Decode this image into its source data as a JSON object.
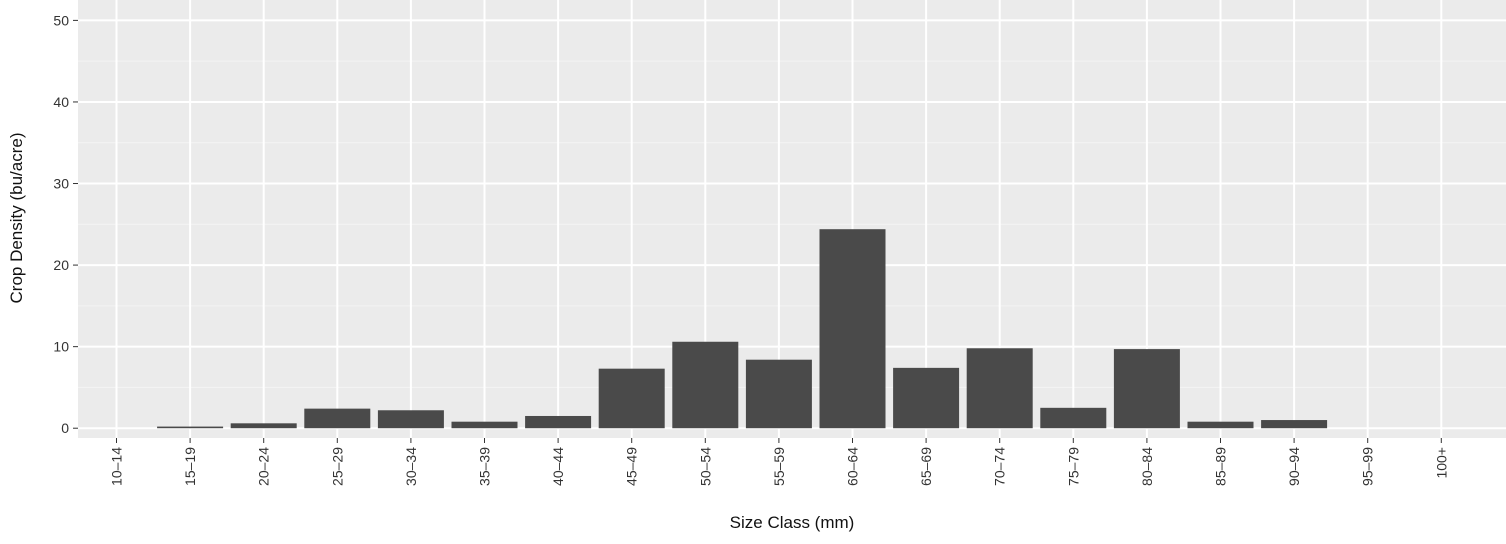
{
  "chart_data": {
    "type": "bar",
    "xlabel": "Size Class (mm)",
    "ylabel": "Crop Density (bu/acre)",
    "categories": [
      "10-14",
      "15-19",
      "20-24",
      "25-29",
      "30-34",
      "35-39",
      "40-44",
      "45-49",
      "50-54",
      "55-59",
      "60-64",
      "65-69",
      "70-74",
      "75-79",
      "80-84",
      "85-89",
      "90-94",
      "95-99",
      "100+"
    ],
    "category_labels": [
      "10–14",
      "15–19",
      "20–24",
      "25–29",
      "30–34",
      "35–39",
      "40–44",
      "45–49",
      "50–54",
      "55–59",
      "60–64",
      "65–69",
      "70–74",
      "75–79",
      "80–84",
      "85–89",
      "90–94",
      "95–99",
      "100+"
    ],
    "values": [
      0,
      0.2,
      0.6,
      2.4,
      2.2,
      0.8,
      1.5,
      7.3,
      10.6,
      8.4,
      24.4,
      7.4,
      9.8,
      2.5,
      9.7,
      0.8,
      1.0,
      0,
      0
    ],
    "yticks": [
      0,
      10,
      20,
      30,
      40,
      50
    ],
    "ylim": [
      -1.2,
      52.5
    ],
    "grid": true,
    "legend": "none",
    "colors": {
      "panel": "#ebebeb",
      "grid_major": "#ffffff",
      "grid_minor": "#f4f4f4",
      "bar": "#4a4a4a",
      "text": "#333333"
    }
  }
}
